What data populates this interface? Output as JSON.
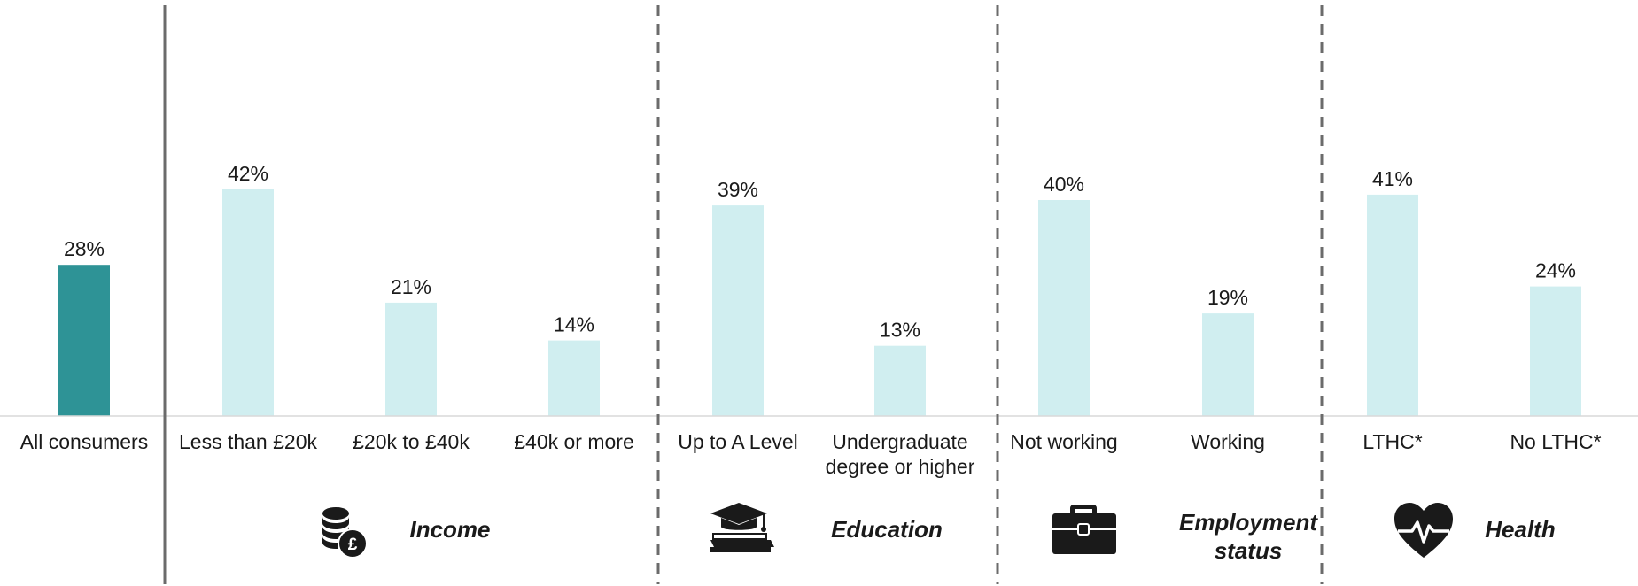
{
  "chart_data": {
    "type": "bar",
    "ylim": [
      0,
      70
    ],
    "grid": false,
    "categories": [
      "All consumers",
      "Less than £20k",
      "£20k to £40k",
      "£40k or more",
      "Up to A Level",
      "Undergraduate degree or higher",
      "Not working",
      "Working",
      "LTHC*",
      "No LTHC*"
    ],
    "category_lines": [
      [
        "All consumers"
      ],
      [
        "Less than £20k"
      ],
      [
        "£20k to £40k"
      ],
      [
        "£40k or more"
      ],
      [
        "Up to A Level"
      ],
      [
        "Undergraduate",
        "degree or higher"
      ],
      [
        "Not working"
      ],
      [
        "Working"
      ],
      [
        "LTHC*"
      ],
      [
        "No LTHC*"
      ]
    ],
    "values": [
      28,
      42,
      21,
      14,
      39,
      13,
      40,
      19,
      41,
      24
    ],
    "value_labels": [
      "28%",
      "42%",
      "21%",
      "14%",
      "39%",
      "13%",
      "40%",
      "19%",
      "41%",
      "24%"
    ],
    "groups": [
      {
        "label_lines": [
          "Income"
        ],
        "icon": "coins-pound-icon",
        "categories": [
          "Less than £20k",
          "£20k to £40k",
          "£40k or more"
        ]
      },
      {
        "label_lines": [
          "Education"
        ],
        "icon": "graduation-cap-book-icon",
        "categories": [
          "Up to A Level",
          "Undergraduate degree or higher"
        ]
      },
      {
        "label_lines": [
          "Employment",
          "status"
        ],
        "icon": "briefcase-icon",
        "categories": [
          "Not working",
          "Working"
        ]
      },
      {
        "label_lines": [
          "Health"
        ],
        "icon": "heart-pulse-icon",
        "categories": [
          "LTHC*",
          "No LTHC*"
        ]
      }
    ]
  },
  "colors": {
    "highlight_bar": "#2e9396",
    "bar": "#d0eef0",
    "divider": "#6b6b6b",
    "baseline": "#d9d9d9",
    "icon": "#1a1a1a"
  }
}
